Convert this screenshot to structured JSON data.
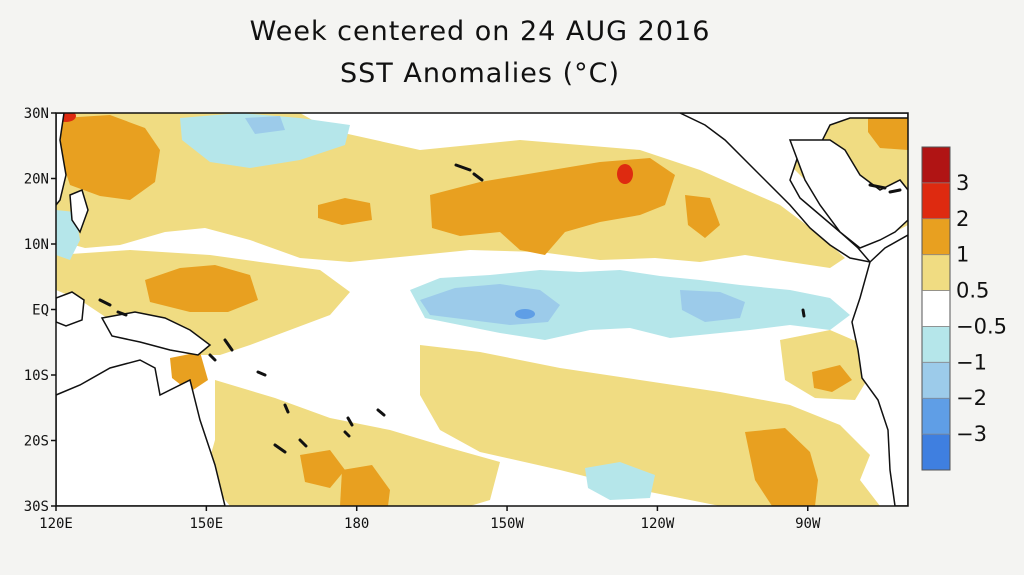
{
  "title": {
    "line1": "Week centered on 24 AUG 2016",
    "line2": "SST Anomalies (°C)"
  },
  "map": {
    "lon_ticks": [
      "120E",
      "150E",
      "180",
      "150W",
      "120W",
      "90W"
    ],
    "lat_ticks": [
      "30N",
      "20N",
      "10N",
      "EQ",
      "10S",
      "20S",
      "30S"
    ],
    "lon_range_deg_east": [
      120,
      290
    ],
    "lat_range": [
      -30,
      30
    ]
  },
  "colorbar": {
    "labels": [
      "3",
      "2",
      "1",
      "0.5",
      "−0.5",
      "−1",
      "−2",
      "−3"
    ],
    "levels": [
      3,
      2,
      1,
      0.5,
      -0.5,
      -1,
      -2,
      -3
    ],
    "colors": [
      "#b01414",
      "#de2a10",
      "#e8a020",
      "#f0dc82",
      "#ffffff",
      "#b5e6ea",
      "#9ccbea",
      "#5f9ee6",
      "#3f7fe0"
    ]
  }
}
